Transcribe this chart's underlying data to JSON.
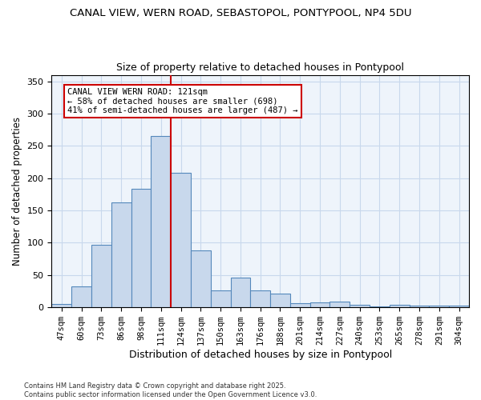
{
  "title_line1": "CANAL VIEW, WERN ROAD, SEBASTOPOL, PONTYPOOL, NP4 5DU",
  "title_line2": "Size of property relative to detached houses in Pontypool",
  "xlabel": "Distribution of detached houses by size in Pontypool",
  "ylabel": "Number of detached properties",
  "categories": [
    "47sqm",
    "60sqm",
    "73sqm",
    "86sqm",
    "98sqm",
    "111sqm",
    "124sqm",
    "137sqm",
    "150sqm",
    "163sqm",
    "176sqm",
    "188sqm",
    "201sqm",
    "214sqm",
    "227sqm",
    "240sqm",
    "253sqm",
    "265sqm",
    "278sqm",
    "291sqm",
    "304sqm"
  ],
  "values": [
    5,
    33,
    97,
    163,
    183,
    265,
    208,
    88,
    26,
    46,
    26,
    21,
    7,
    8,
    9,
    4,
    1,
    4,
    3,
    3,
    3
  ],
  "bar_color": "#c8d8ec",
  "bar_edge_color": "#5588bb",
  "red_line_x": 5.5,
  "marker_label_line1": "CANAL VIEW WERN ROAD: 121sqm",
  "marker_label_line2": "← 58% of detached houses are smaller (698)",
  "marker_label_line3": "41% of semi-detached houses are larger (487) →",
  "red_line_color": "#cc0000",
  "annotation_box_edge": "#cc0000",
  "grid_color": "#c8d8ec",
  "background_color": "#eef4fb",
  "footer_line1": "Contains HM Land Registry data © Crown copyright and database right 2025.",
  "footer_line2": "Contains public sector information licensed under the Open Government Licence v3.0.",
  "ylim": [
    0,
    360
  ],
  "yticks": [
    0,
    50,
    100,
    150,
    200,
    250,
    300,
    350
  ]
}
